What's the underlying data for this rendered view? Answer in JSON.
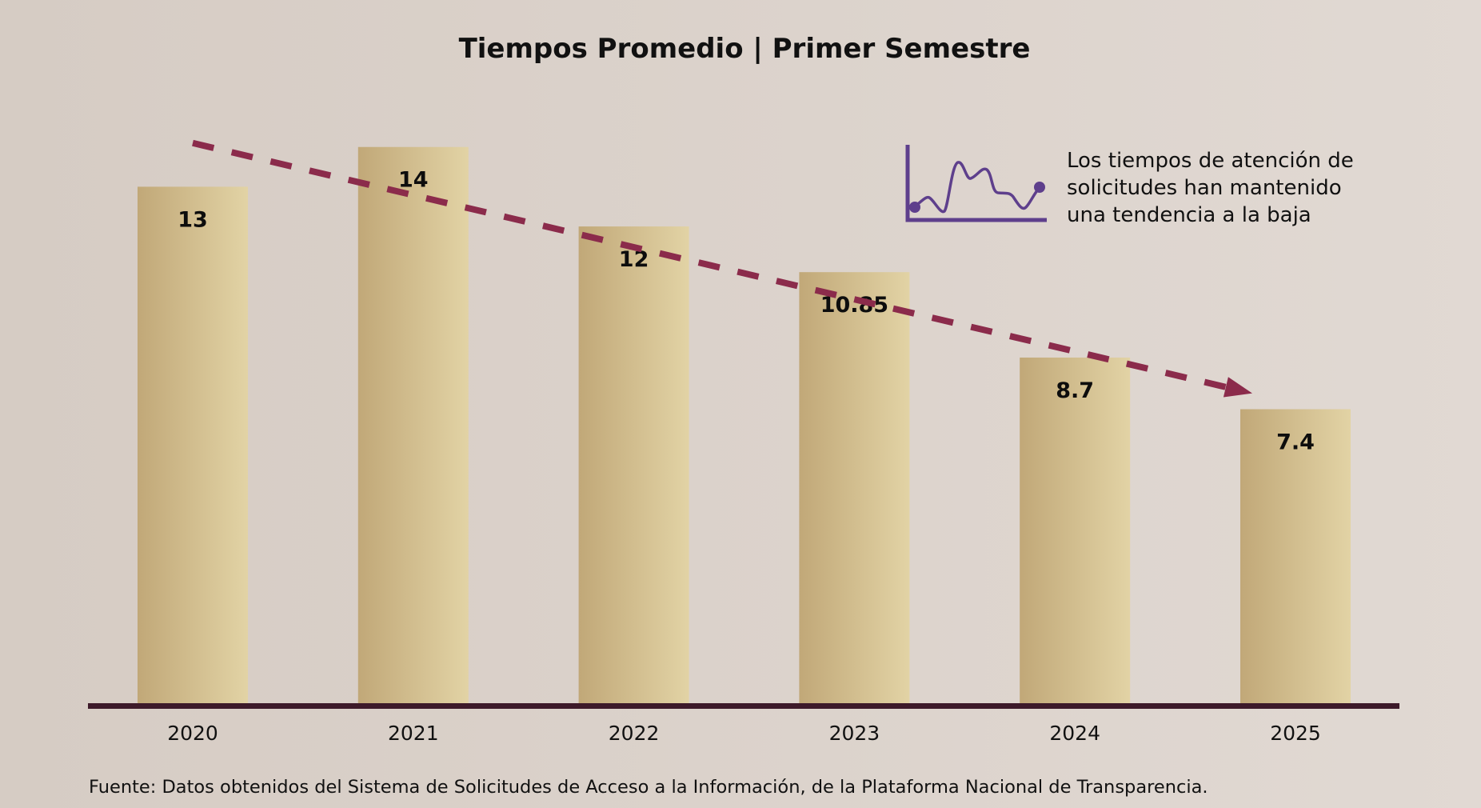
{
  "chart_data": {
    "type": "bar",
    "title": "Tiempos Promedio | Primer Semestre",
    "xlabel": "",
    "ylabel": "",
    "categories": [
      "2020",
      "2021",
      "2022",
      "2023",
      "2024",
      "2025"
    ],
    "values": [
      13,
      14,
      12,
      10.85,
      8.7,
      7.4
    ],
    "value_labels": [
      "13",
      "14",
      "12",
      "10.85",
      "8.7",
      "7.4"
    ],
    "ylim": [
      0,
      17.7
    ],
    "grid": false,
    "legend": null,
    "trend": {
      "style": "dashed-arrow",
      "direction": "down",
      "start_value": 14.1,
      "end_value": 7.8
    },
    "annotation": {
      "icon": "line-chart-icon",
      "lines": [
        "Los tiempos de atención de",
        "solicitudes han mantenido",
        "una tendencia a la baja"
      ]
    },
    "source": "Fuente: Datos obtenidos del Sistema de Solicitudes de Acceso a la Información, de la Plataforma Nacional de Transparencia."
  },
  "colors": {
    "bar_left": "#c1a878",
    "bar_right": "#e2d3a5",
    "axis": "#3d1a2a",
    "trend": "#8b2b4b",
    "icon": "#5e3f8c"
  }
}
